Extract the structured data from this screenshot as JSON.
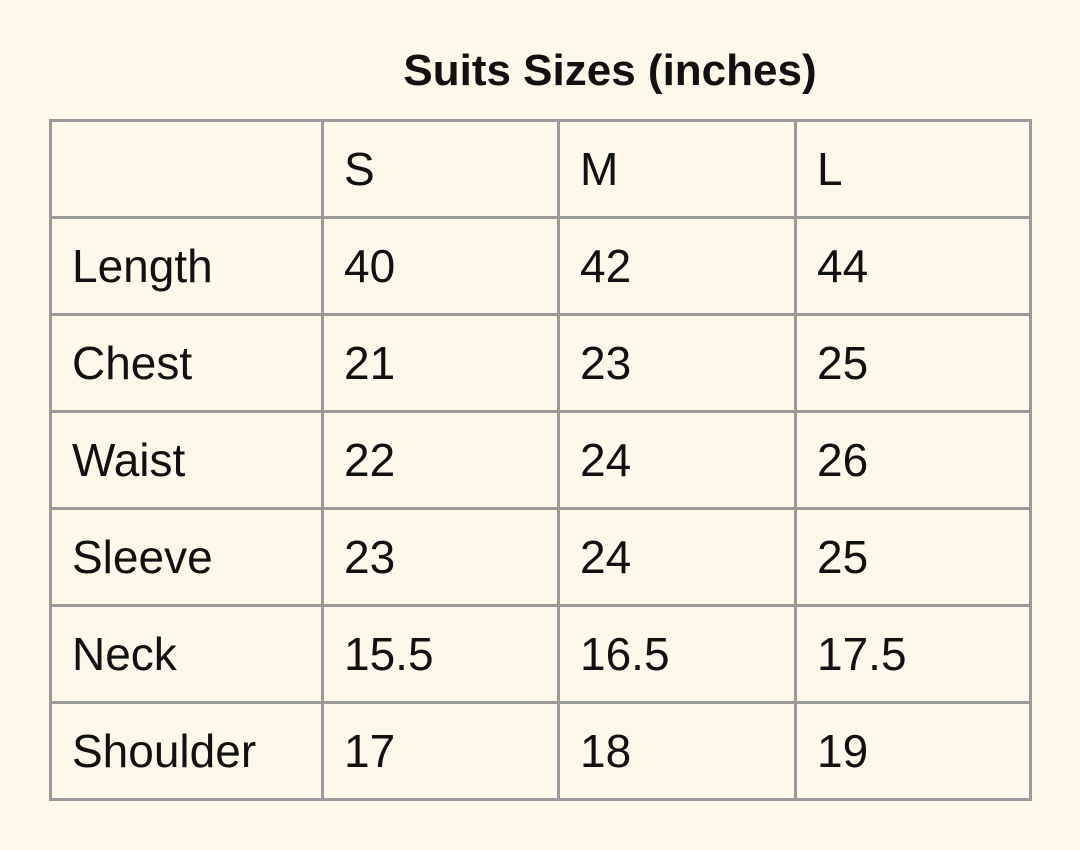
{
  "header": {
    "title": "Suits Sizes (inches)"
  },
  "table": {
    "columns": [
      "S",
      "M",
      "L"
    ],
    "rows": [
      {
        "label": "Length",
        "values": [
          40,
          42,
          44
        ]
      },
      {
        "label": "Chest",
        "values": [
          21,
          23,
          25
        ]
      },
      {
        "label": "Waist",
        "values": [
          22,
          24,
          26
        ]
      },
      {
        "label": "Sleeve",
        "values": [
          23,
          24,
          25
        ]
      },
      {
        "label": "Neck",
        "values": [
          15.5,
          16.5,
          17.5
        ]
      },
      {
        "label": "Shoulder",
        "values": [
          17,
          18,
          19
        ]
      }
    ]
  }
}
